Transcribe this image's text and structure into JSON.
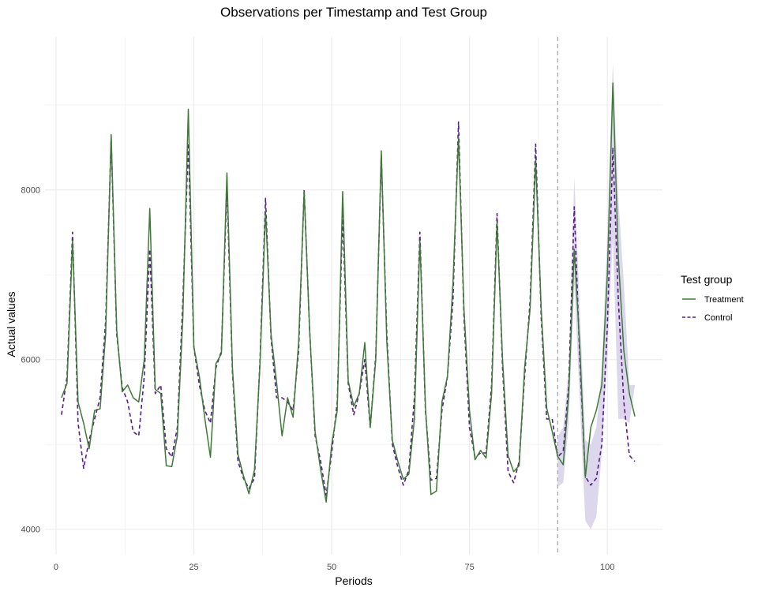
{
  "chart_data": {
    "type": "line",
    "title": "Observations per Timestamp and Test Group",
    "xlabel": "Periods",
    "ylabel": "Actual values",
    "xlim": [
      -2,
      110
    ],
    "ylim": [
      3700,
      9800
    ],
    "x_ticks": [
      0,
      25,
      50,
      75,
      100
    ],
    "x_tick_labels": [
      "0",
      "25",
      "50",
      "75",
      "100"
    ],
    "y_ticks": [
      4000,
      6000,
      8000
    ],
    "y_tick_labels": [
      "4000",
      "6000",
      "8000"
    ],
    "grid": true,
    "intervention_period": 91,
    "legend": {
      "title": "Test group",
      "placement": "right",
      "entries": [
        "Treatment",
        "Control"
      ]
    },
    "colors": {
      "treatment": "#3e7a36",
      "control": "#5a1a8a",
      "ribbon": "#d8d3ea",
      "intervention_line": "#a8a8a8",
      "grid": "#ebebeb"
    },
    "series": [
      {
        "name": "Treatment",
        "line_style": "solid",
        "x": [
          1,
          2,
          3,
          4,
          5,
          6,
          7,
          8,
          9,
          10,
          11,
          12,
          13,
          14,
          15,
          16,
          17,
          18,
          19,
          20,
          21,
          22,
          23,
          24,
          25,
          26,
          27,
          28,
          29,
          30,
          31,
          32,
          33,
          34,
          35,
          36,
          37,
          38,
          39,
          40,
          41,
          42,
          43,
          44,
          45,
          46,
          47,
          48,
          49,
          50,
          51,
          52,
          53,
          54,
          55,
          56,
          57,
          58,
          59,
          60,
          61,
          62,
          63,
          64,
          65,
          66,
          67,
          68,
          69,
          70,
          71,
          72,
          73,
          74,
          75,
          76,
          77,
          78,
          79,
          80,
          81,
          82,
          83,
          84,
          85,
          86,
          87,
          88,
          89,
          90,
          91,
          92,
          93,
          94,
          95,
          96,
          97,
          98,
          99,
          100,
          101,
          102,
          103,
          104,
          105
        ],
        "values": [
          5550,
          5720,
          7400,
          5500,
          5250,
          4950,
          5400,
          5420,
          6300,
          8650,
          6350,
          5620,
          5700,
          5550,
          5500,
          6000,
          7780,
          5650,
          5600,
          4750,
          4740,
          5100,
          6500,
          8950,
          6150,
          5800,
          5300,
          4850,
          5950,
          6070,
          8200,
          5900,
          4880,
          4630,
          4420,
          4700,
          5950,
          7750,
          6300,
          5730,
          5100,
          5550,
          5320,
          6200,
          7980,
          6350,
          5150,
          4700,
          4320,
          5000,
          5400,
          7980,
          5750,
          5450,
          5600,
          6200,
          5200,
          6000,
          8460,
          6200,
          5050,
          4800,
          4590,
          4650,
          5300,
          7400,
          5450,
          4410,
          4450,
          5500,
          5800,
          6900,
          8620,
          6600,
          5400,
          4820,
          4930,
          4840,
          5600,
          7620,
          6000,
          4870,
          4680,
          4750,
          5900,
          6600,
          8350,
          6600,
          5430,
          5150,
          4860,
          4760,
          5600,
          7300,
          6150,
          4610,
          5200,
          5400,
          5700,
          7000,
          9260,
          7200,
          6100,
          5600,
          5330
        ]
      },
      {
        "name": "Control",
        "line_style": "dashed",
        "x": [
          1,
          2,
          3,
          4,
          5,
          6,
          7,
          8,
          9,
          10,
          11,
          12,
          13,
          14,
          15,
          16,
          17,
          18,
          19,
          20,
          21,
          22,
          23,
          24,
          25,
          26,
          27,
          28,
          29,
          30,
          31,
          32,
          33,
          34,
          35,
          36,
          37,
          38,
          39,
          40,
          41,
          42,
          43,
          44,
          45,
          46,
          47,
          48,
          49,
          50,
          51,
          52,
          53,
          54,
          55,
          56,
          57,
          58,
          59,
          60,
          61,
          62,
          63,
          64,
          65,
          66,
          67,
          68,
          69,
          70,
          71,
          72,
          73,
          74,
          75,
          76,
          77,
          78,
          79,
          80,
          81,
          82,
          83,
          84,
          85,
          86,
          87,
          88,
          89,
          90,
          91,
          92,
          93,
          94,
          95,
          96,
          97,
          98,
          99,
          100,
          101,
          102,
          103,
          104,
          105
        ],
        "values": [
          5350,
          5800,
          7500,
          5250,
          4720,
          5050,
          5300,
          5550,
          6450,
          8600,
          6300,
          5670,
          5500,
          5150,
          5100,
          5800,
          7300,
          5600,
          5700,
          4950,
          4850,
          5200,
          6700,
          8550,
          6150,
          5700,
          5400,
          5250,
          5900,
          6100,
          8050,
          5850,
          4800,
          4600,
          4480,
          4600,
          6000,
          7900,
          6250,
          5550,
          5550,
          5500,
          5400,
          6100,
          8000,
          6350,
          5100,
          4800,
          4400,
          4900,
          5500,
          7700,
          5720,
          5350,
          5600,
          6000,
          5200,
          6050,
          8400,
          6300,
          5000,
          4730,
          4520,
          4700,
          5550,
          7500,
          5400,
          4580,
          4600,
          5400,
          5800,
          6700,
          8800,
          6500,
          5200,
          4850,
          4900,
          4900,
          5700,
          7720,
          5900,
          4680,
          4550,
          4800,
          5800,
          6700,
          8540,
          6500,
          5300,
          5300,
          4850,
          4920,
          5700,
          7800,
          6000,
          4620,
          4520,
          4600,
          5000,
          6400,
          8500,
          6700,
          5500,
          4870,
          4800
        ]
      }
    ],
    "ribbon": {
      "name": "Control prediction interval",
      "x": [
        91,
        92,
        93,
        94,
        95,
        96,
        97,
        98,
        99,
        100,
        101,
        102,
        103,
        104,
        105
      ],
      "lower": [
        4500,
        4550,
        5250,
        6900,
        5500,
        4100,
        4000,
        4150,
        4900,
        6050,
        7450,
        5300,
        5300,
        5250,
        5700
      ],
      "upper": [
        5100,
        5200,
        5900,
        8150,
        6600,
        5050,
        5000,
        5200,
        5900,
        7500,
        9500,
        7900,
        6900,
        5700,
        5700
      ]
    }
  }
}
